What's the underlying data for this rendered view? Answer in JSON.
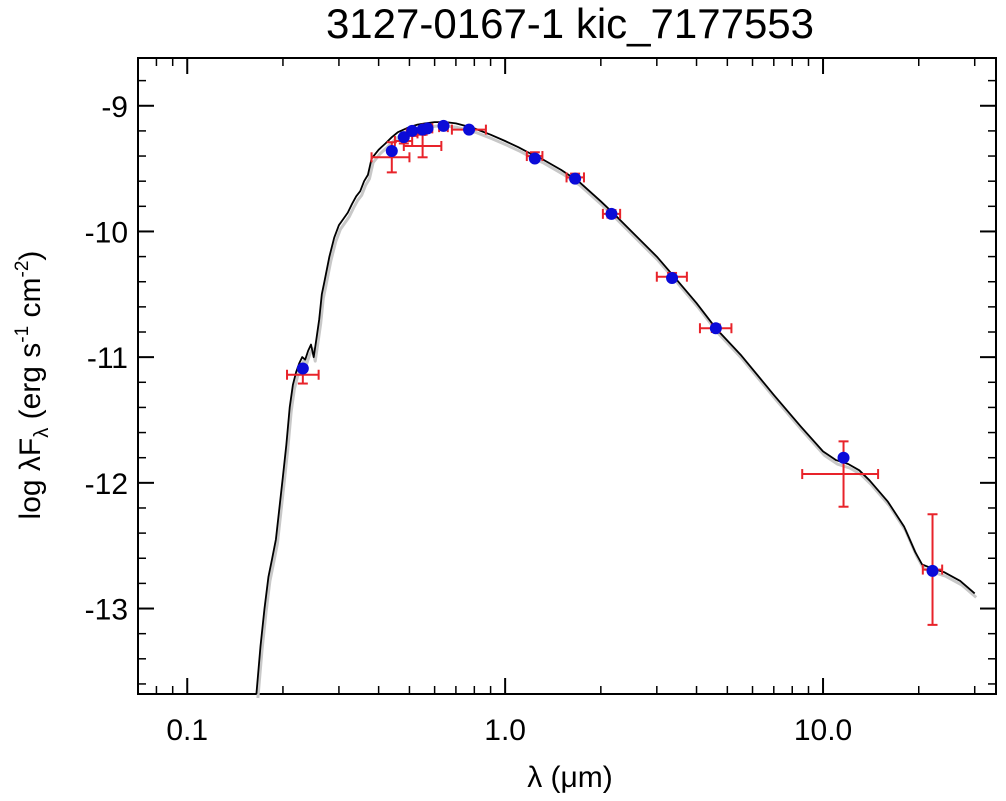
{
  "chart_data": {
    "type": "scatter",
    "title": "3127-0167-1   kic_7177553",
    "xlabel": {
      "main": "λ (",
      "unit": "μm",
      "close": ")"
    },
    "ylabel": {
      "pre": "log λF",
      "sub": "λ",
      "mid": " (erg s",
      "sup1": "-1",
      "mid2": " cm",
      "sup2": "-2",
      "post": ")"
    },
    "xscale": "log",
    "xlim": [
      0.07,
      35.0
    ],
    "ylim": [
      -13.68,
      -8.62
    ],
    "x_ticks": [
      {
        "value": 0.1,
        "label": "0.1"
      },
      {
        "value": 1.0,
        "label": "1.0"
      },
      {
        "value": 10.0,
        "label": "10.0"
      }
    ],
    "y_ticks": [
      {
        "value": -9,
        "label": "-9"
      },
      {
        "value": -10,
        "label": "-10"
      },
      {
        "value": -11,
        "label": "-11"
      },
      {
        "value": -12,
        "label": "-12"
      },
      {
        "value": -13,
        "label": "-13"
      }
    ],
    "grid": false,
    "legend": "none",
    "colors": {
      "model": "#000000",
      "model_alt": "#c8c8c8",
      "observed": "#e8232a",
      "synthetic": "#0b0bd8"
    },
    "series": [
      {
        "kind": "observed-photometry",
        "points": [
          {
            "x": 0.231,
            "y": -11.14,
            "xerr": [
              0.025,
              0.028
            ],
            "yerr": 0.07
          },
          {
            "x": 0.44,
            "y": -9.41,
            "xerr": [
              0.06,
              0.06
            ],
            "yerr": 0.12
          },
          {
            "x": 0.55,
            "y": -9.32,
            "xerr": [
              0.07,
              0.08
            ],
            "yerr": 0.09
          },
          {
            "x": 0.48,
            "y": -9.28,
            "xerr": [
              0.03,
              0.03
            ],
            "yerr": 0.02
          },
          {
            "x": 0.51,
            "y": -9.22,
            "xerr": [
              0.02,
              0.02
            ],
            "yerr": 0.02
          },
          {
            "x": 0.54,
            "y": -9.2,
            "xerr": [
              0.02,
              0.02
            ],
            "yerr": 0.02
          },
          {
            "x": 0.57,
            "y": -9.18,
            "xerr": [
              0.02,
              0.02
            ],
            "yerr": 0.02
          },
          {
            "x": 0.64,
            "y": -9.17,
            "xerr": [
              0.02,
              0.02
            ],
            "yerr": 0.02
          },
          {
            "x": 0.77,
            "y": -9.19,
            "xerr": [
              0.09,
              0.1
            ],
            "yerr": 0.02
          },
          {
            "x": 1.24,
            "y": -9.4,
            "xerr": [
              0.07,
              0.07
            ],
            "yerr": 0.03
          },
          {
            "x": 1.66,
            "y": -9.57,
            "xerr": [
              0.1,
              0.11
            ],
            "yerr": 0.03
          },
          {
            "x": 2.16,
            "y": -9.86,
            "xerr": [
              0.13,
              0.14
            ],
            "yerr": 0.03
          },
          {
            "x": 3.35,
            "y": -10.36,
            "xerr": [
              0.35,
              0.38
            ],
            "yerr": 0.03
          },
          {
            "x": 4.6,
            "y": -10.77,
            "xerr": [
              0.5,
              0.55
            ],
            "yerr": 0.03
          },
          {
            "x": 11.6,
            "y": -11.93,
            "xerr": [
              3.0,
              3.3
            ],
            "yerr": 0.26
          },
          {
            "x": 22.1,
            "y": -12.69,
            "xerr": [
              1.5,
              1.6
            ],
            "yerr": 0.44
          }
        ]
      },
      {
        "kind": "synthetic-photometry",
        "points": [
          {
            "x": 0.231,
            "y": -11.09
          },
          {
            "x": 0.44,
            "y": -9.36
          },
          {
            "x": 0.48,
            "y": -9.25
          },
          {
            "x": 0.51,
            "y": -9.2
          },
          {
            "x": 0.55,
            "y": -9.19
          },
          {
            "x": 0.57,
            "y": -9.18
          },
          {
            "x": 0.64,
            "y": -9.16
          },
          {
            "x": 0.77,
            "y": -9.19
          },
          {
            "x": 1.24,
            "y": -9.42
          },
          {
            "x": 1.66,
            "y": -9.58
          },
          {
            "x": 2.16,
            "y": -9.86
          },
          {
            "x": 3.35,
            "y": -10.37
          },
          {
            "x": 4.6,
            "y": -10.77
          },
          {
            "x": 11.6,
            "y": -11.8
          },
          {
            "x": 22.1,
            "y": -12.7
          }
        ]
      },
      {
        "kind": "model-sed",
        "points": [
          [
            0.165,
            -13.68
          ],
          [
            0.17,
            -13.3
          ],
          [
            0.175,
            -13.0
          ],
          [
            0.18,
            -12.75
          ],
          [
            0.185,
            -12.6
          ],
          [
            0.19,
            -12.45
          ],
          [
            0.195,
            -12.2
          ],
          [
            0.2,
            -11.95
          ],
          [
            0.205,
            -11.7
          ],
          [
            0.21,
            -11.4
          ],
          [
            0.215,
            -11.22
          ],
          [
            0.22,
            -11.12
          ],
          [
            0.225,
            -11.05
          ],
          [
            0.23,
            -11.0
          ],
          [
            0.235,
            -11.02
          ],
          [
            0.24,
            -10.95
          ],
          [
            0.245,
            -10.9
          ],
          [
            0.25,
            -11.0
          ],
          [
            0.255,
            -10.85
          ],
          [
            0.26,
            -10.7
          ],
          [
            0.265,
            -10.5
          ],
          [
            0.27,
            -10.4
          ],
          [
            0.28,
            -10.2
          ],
          [
            0.29,
            -10.05
          ],
          [
            0.3,
            -9.95
          ],
          [
            0.31,
            -9.9
          ],
          [
            0.32,
            -9.85
          ],
          [
            0.33,
            -9.78
          ],
          [
            0.34,
            -9.72
          ],
          [
            0.35,
            -9.68
          ],
          [
            0.36,
            -9.6
          ],
          [
            0.37,
            -9.55
          ],
          [
            0.38,
            -9.42
          ],
          [
            0.4,
            -9.35
          ],
          [
            0.42,
            -9.3
          ],
          [
            0.44,
            -9.25
          ],
          [
            0.46,
            -9.21
          ],
          [
            0.48,
            -9.19
          ],
          [
            0.5,
            -9.17
          ],
          [
            0.53,
            -9.15
          ],
          [
            0.56,
            -9.14
          ],
          [
            0.6,
            -9.13
          ],
          [
            0.65,
            -9.13
          ],
          [
            0.7,
            -9.14
          ],
          [
            0.75,
            -9.16
          ],
          [
            0.8,
            -9.18
          ],
          [
            0.9,
            -9.23
          ],
          [
            1.0,
            -9.28
          ],
          [
            1.1,
            -9.33
          ],
          [
            1.2,
            -9.38
          ],
          [
            1.3,
            -9.42
          ],
          [
            1.5,
            -9.51
          ],
          [
            1.7,
            -9.6
          ],
          [
            2.0,
            -9.76
          ],
          [
            2.2,
            -9.86
          ],
          [
            2.5,
            -10.0
          ],
          [
            3.0,
            -10.2
          ],
          [
            3.4,
            -10.36
          ],
          [
            4.0,
            -10.57
          ],
          [
            4.6,
            -10.77
          ],
          [
            5.5,
            -10.98
          ],
          [
            7.0,
            -11.3
          ],
          [
            8.5,
            -11.55
          ],
          [
            10.0,
            -11.75
          ],
          [
            11.0,
            -11.82
          ],
          [
            12.0,
            -11.85
          ],
          [
            13.0,
            -11.9
          ],
          [
            14.0,
            -11.98
          ],
          [
            16.0,
            -12.15
          ],
          [
            18.0,
            -12.35
          ],
          [
            19.5,
            -12.55
          ],
          [
            20.5,
            -12.65
          ],
          [
            22.0,
            -12.68
          ],
          [
            24.0,
            -12.71
          ],
          [
            27.0,
            -12.78
          ],
          [
            30.0,
            -12.88
          ]
        ]
      }
    ]
  }
}
